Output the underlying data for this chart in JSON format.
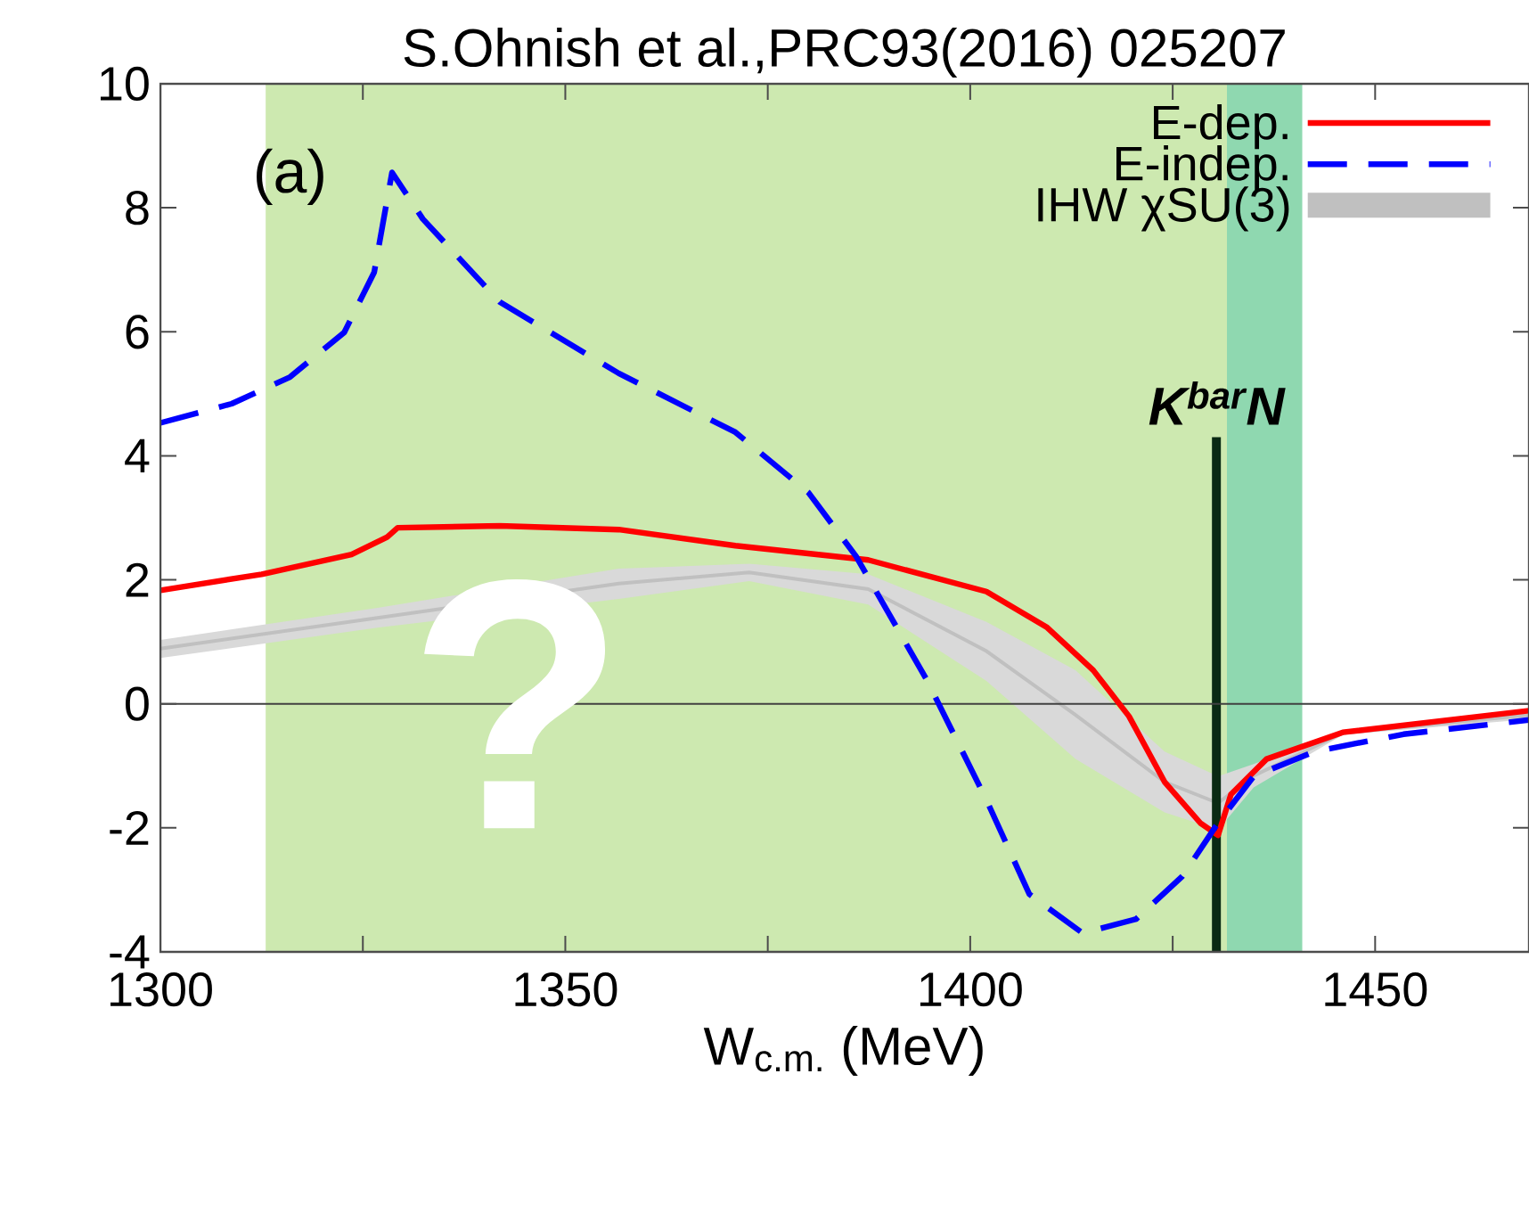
{
  "chart_data": {
    "type": "line",
    "title": "S.Ohnish et al.,PRC93(2016) 025207",
    "xlabel": "W$_{c.m.}$ (MeV)",
    "xlim": [
      1300,
      1469
    ],
    "ylim": [
      -4,
      10
    ],
    "xticks": [
      1300,
      {
        "value": 1325,
        "label": null
      },
      1350,
      {
        "value": 1375,
        "label": null
      },
      1400,
      {
        "value": 1425,
        "label": null
      },
      1450
    ],
    "yticks": [
      -4,
      -2,
      0,
      2,
      4,
      6,
      8,
      10
    ],
    "grid": false,
    "legend": "top right",
    "marker": "none",
    "series": [
      {
        "name": "E-dep.",
        "color": "#ff0000",
        "line_style": "solid",
        "x": [
          1300,
          1312.5,
          1323.6,
          1328,
          1329.3,
          1341.9,
          1356.6,
          1371,
          1387.4,
          1402,
          1409.5,
          1415.2,
          1419.6,
          1424,
          1428.4,
          1430.6,
          1432.2,
          1436.6,
          1446,
          1469
        ],
        "values": [
          1.83,
          2.09,
          2.41,
          2.69,
          2.84,
          2.87,
          2.81,
          2.55,
          2.32,
          1.81,
          1.23,
          0.54,
          -0.2,
          -1.26,
          -1.92,
          -2.12,
          -1.46,
          -0.89,
          -0.46,
          -0.11
        ]
      },
      {
        "name": "E-indep.",
        "color": "#0000ff",
        "line_style": "dashed",
        "x": [
          1300,
          1308.8,
          1316,
          1322.7,
          1326.4,
          1328.6,
          1332.4,
          1341.9,
          1356.6,
          1371,
          1380,
          1385.9,
          1394.7,
          1402,
          1407.3,
          1413.9,
          1420.5,
          1426.2,
          1430.6,
          1435,
          1442.5,
          1453.5,
          1469
        ],
        "values": [
          4.53,
          4.84,
          5.27,
          5.99,
          6.96,
          8.57,
          7.82,
          6.48,
          5.33,
          4.38,
          3.41,
          2.38,
          0.37,
          -1.55,
          -3.07,
          -3.7,
          -3.47,
          -2.78,
          -1.92,
          -1.17,
          -0.77,
          -0.49,
          -0.26
        ]
      },
      {
        "name": "IHW χSU(3)",
        "color": "#c0c0c0",
        "x": [
          1300,
          1327,
          1356.6,
          1372.7,
          1387.4,
          1402,
          1413,
          1424,
          1430.6,
          1435,
          1446,
          1469
        ],
        "values": [
          0.89,
          1.39,
          1.94,
          2.12,
          1.85,
          0.85,
          -0.18,
          -1.26,
          -1.6,
          -1.16,
          -0.47,
          -0.18
        ],
        "lower": [
          0.74,
          1.23,
          1.69,
          1.98,
          1.6,
          0.37,
          -0.89,
          -1.75,
          -2.03,
          -1.35,
          -0.5,
          -0.25
        ],
        "upper": [
          1.03,
          1.55,
          2.18,
          2.26,
          2.09,
          1.32,
          0.54,
          -0.77,
          -1.17,
          -0.97,
          -0.43,
          -0.1
        ]
      }
    ],
    "ref_lines": [
      {
        "axis": "x",
        "value": 1430.4,
        "label": "K$^{bar}$N",
        "color": "#0a2a14"
      },
      {
        "axis": "y",
        "value": 0,
        "color": "#404040"
      }
    ],
    "bands": [
      {
        "axis": "x",
        "from": 1313,
        "to": 1437,
        "color": "#cde9b0"
      },
      {
        "axis": "x",
        "from": 1431.7,
        "to": 1441,
        "color": "#8fd8b0"
      }
    ],
    "annotations": [
      "(a)",
      "?"
    ]
  }
}
